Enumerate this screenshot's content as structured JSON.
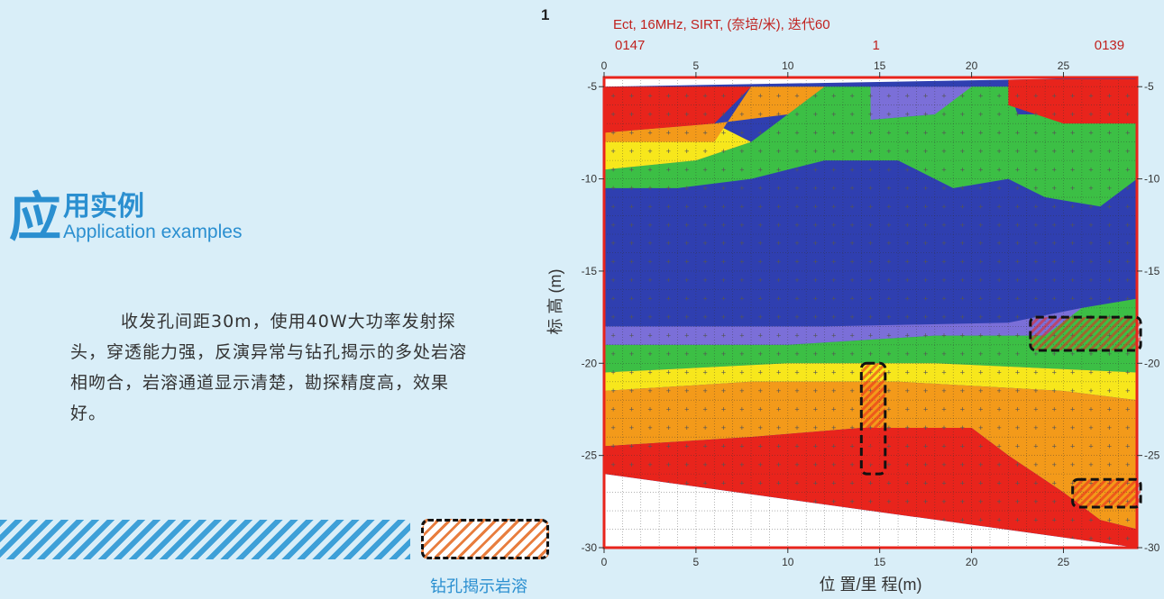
{
  "intro": {
    "big_char": "应",
    "title_zh": "用实例",
    "title_en": "Application examples",
    "description": "收发孔间距30m，使用40W大功率发射探头，穿透能力强，反演异常与钻孔揭示的多处岩溶相吻合，岩溶通道显示清楚，勘探精度高，效果好。",
    "legend_label": "钻孔揭示岩溶"
  },
  "colors": {
    "accent": "#2a8fd0",
    "stripe": "#3ea0d8",
    "hatch": "#e87d3e",
    "frame": "#d0141a",
    "background": "#d9eef8"
  },
  "chart_data": {
    "type": "heatmap",
    "panel_number": "1",
    "title": "Ect, 16MHz, SIRT, (奈培/米), 迭代60",
    "top_labels": [
      "0147",
      "1",
      "0139"
    ],
    "xlabel": "位 置/里 程(m)",
    "ylabel": "标 高 (m)",
    "xlim": [
      0,
      29
    ],
    "ylim": [
      -30,
      -4.5
    ],
    "x_ticks": [
      0,
      5,
      10,
      15,
      20,
      25
    ],
    "y_ticks": [
      -5,
      -10,
      -15,
      -20,
      -25,
      -30
    ],
    "grid": true,
    "top_boundary": [
      [
        0,
        -5.0
      ],
      [
        29,
        -4.5
      ]
    ],
    "bottom_boundary": [
      [
        0,
        -26.0
      ],
      [
        29,
        -30.0
      ]
    ],
    "zones": [
      {
        "name": "red",
        "color": "#e8241c",
        "polygons": [
          [
            [
              0,
              -5
            ],
            [
              8,
              -5
            ],
            [
              6,
              -7
            ],
            [
              0,
              -7.5
            ]
          ],
          [
            [
              22,
              -4.6
            ],
            [
              29,
              -4.6
            ],
            [
              29,
              -7
            ],
            [
              25,
              -7
            ],
            [
              22,
              -6
            ]
          ],
          [
            [
              0,
              -24.5
            ],
            [
              8,
              -24
            ],
            [
              14,
              -23.5
            ],
            [
              20,
              -23.5
            ],
            [
              22,
              -25
            ],
            [
              25,
              -27
            ],
            [
              27,
              -28.5
            ],
            [
              29,
              -29
            ],
            [
              29,
              -30
            ],
            [
              0,
              -26
            ]
          ]
        ]
      },
      {
        "name": "orange",
        "color": "#f39a1a",
        "polygons": [
          [
            [
              8,
              -5
            ],
            [
              12,
              -5
            ],
            [
              10,
              -6.5
            ],
            [
              6,
              -7
            ],
            [
              0,
              -7.5
            ],
            [
              0,
              -8
            ],
            [
              6,
              -8
            ]
          ],
          [
            [
              0,
              -21.5
            ],
            [
              8,
              -21
            ],
            [
              16,
              -21
            ],
            [
              25,
              -21.5
            ],
            [
              29,
              -22
            ],
            [
              29,
              -29
            ],
            [
              27,
              -28.5
            ],
            [
              25,
              -27
            ],
            [
              22,
              -25
            ],
            [
              20,
              -23.5
            ],
            [
              14,
              -23.5
            ],
            [
              8,
              -24
            ],
            [
              0,
              -24.5
            ]
          ]
        ]
      },
      {
        "name": "yellow",
        "color": "#f7e71c",
        "polygons": [
          [
            [
              0,
              -7.5
            ],
            [
              6,
              -7
            ],
            [
              8,
              -8
            ],
            [
              5,
              -9
            ],
            [
              0,
              -9.5
            ]
          ],
          [
            [
              0,
              -20.5
            ],
            [
              10,
              -20
            ],
            [
              18,
              -20
            ],
            [
              29,
              -20.5
            ],
            [
              29,
              -22
            ],
            [
              25,
              -21.5
            ],
            [
              16,
              -21
            ],
            [
              8,
              -21
            ],
            [
              0,
              -21.5
            ]
          ]
        ]
      },
      {
        "name": "green",
        "color": "#3cbf45",
        "polygons": [
          [
            [
              12,
              -5
            ],
            [
              14.5,
              -5
            ],
            [
              14.5,
              -6.8
            ],
            [
              18,
              -6.5
            ],
            [
              20,
              -5
            ],
            [
              22,
              -5
            ],
            [
              22.5,
              -6.5
            ],
            [
              26,
              -6.5
            ],
            [
              29,
              -7
            ],
            [
              29,
              -10
            ],
            [
              27,
              -11.5
            ],
            [
              24,
              -11
            ],
            [
              22,
              -10
            ],
            [
              19,
              -10.5
            ],
            [
              16,
              -9
            ],
            [
              12,
              -9
            ],
            [
              8,
              -10
            ],
            [
              4,
              -10.5
            ],
            [
              0,
              -10.5
            ],
            [
              0,
              -9.5
            ],
            [
              5,
              -9
            ],
            [
              8,
              -8
            ]
          ],
          [
            [
              0,
              -19
            ],
            [
              10,
              -19
            ],
            [
              18,
              -18.5
            ],
            [
              24,
              -18.5
            ],
            [
              26,
              -17
            ],
            [
              29,
              -16.5
            ],
            [
              29,
              -20.5
            ],
            [
              18,
              -20
            ],
            [
              10,
              -20
            ],
            [
              0,
              -20.5
            ]
          ]
        ]
      },
      {
        "name": "purple",
        "color": "#7b6fd8",
        "polygons": [
          [
            [
              14.5,
              -5
            ],
            [
              22,
              -5
            ],
            [
              20,
              -5.2
            ],
            [
              18,
              -6.5
            ],
            [
              14.5,
              -6.8
            ]
          ],
          [
            [
              0,
              -18
            ],
            [
              12,
              -18
            ],
            [
              22,
              -17.8
            ],
            [
              26,
              -17
            ],
            [
              26,
              -18.5
            ],
            [
              18,
              -18.5
            ],
            [
              10,
              -19
            ],
            [
              0,
              -19
            ]
          ]
        ]
      }
    ],
    "blue_background": "#2f3fb0",
    "drill_markers": [
      {
        "x": [
          23.2,
          29.2
        ],
        "y": [
          -17.5,
          -19.3
        ]
      },
      {
        "x": [
          14,
          15.3
        ],
        "y": [
          -20,
          -26
        ]
      },
      {
        "x": [
          25.5,
          29.2
        ],
        "y": [
          -26.3,
          -27.8
        ]
      }
    ]
  }
}
